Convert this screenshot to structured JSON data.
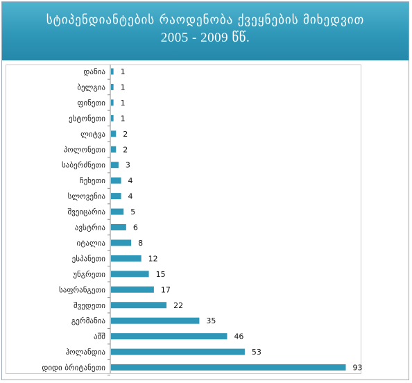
{
  "chart_data": {
    "type": "bar",
    "orientation": "horizontal",
    "title_line1": "სტიპენდიანტების რაოდენობა ქვეყნების მიხედვით",
    "title_line2": "2005 - 2009 წწ.",
    "categories": [
      "დანია",
      "ბელგია",
      "ფინეთი",
      "ესტონეთი",
      "ლიტვა",
      "პოლონეთი",
      "საბერძნეთი",
      "ჩეხეთი",
      "სლოვენია",
      "შვეიცარია",
      "ავსტრია",
      "იტალია",
      "ესპანეთი",
      "უნგრეთი",
      "საფრანგეთი",
      "შვედეთი",
      "გერმანია",
      "აშშ",
      "ჰოლანდია",
      "დიდი ბრიტანეთი"
    ],
    "values": [
      1,
      1,
      1,
      1,
      2,
      2,
      3,
      4,
      4,
      5,
      6,
      8,
      12,
      15,
      17,
      22,
      35,
      46,
      53,
      93
    ],
    "xlim": [
      0,
      100
    ],
    "bar_color": "#2f97b8",
    "grid": false,
    "legend": "none"
  }
}
